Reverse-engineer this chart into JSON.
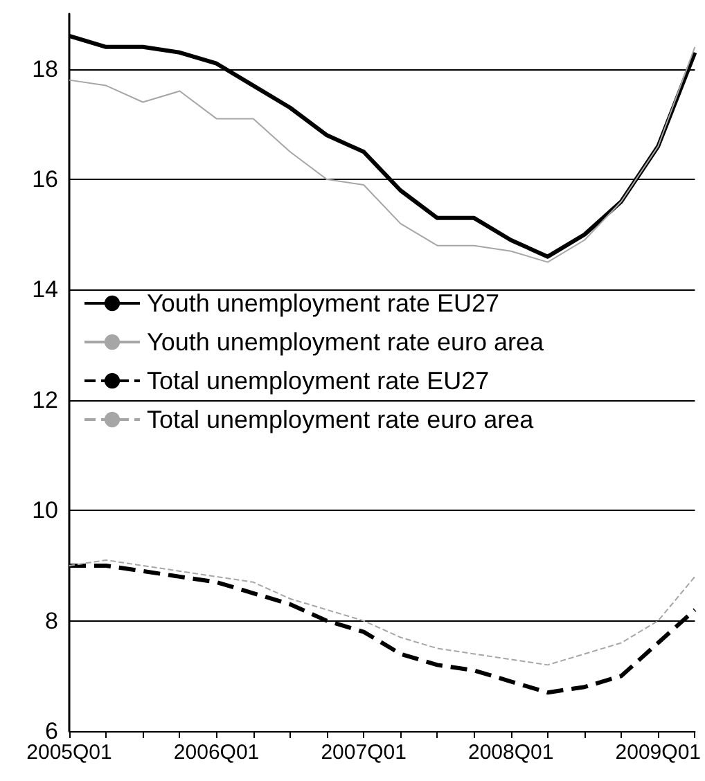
{
  "chart_data": {
    "type": "line",
    "categories": [
      "2005Q01",
      null,
      null,
      null,
      "2006Q01",
      null,
      null,
      null,
      "2007Q01",
      null,
      null,
      null,
      "2008Q01",
      null,
      null,
      null,
      "2009Q01",
      null
    ],
    "series": [
      {
        "name": "Youth unemployment rate EU27",
        "color": "#000000",
        "line_style": "solid",
        "values": [
          18.6,
          18.4,
          18.4,
          18.3,
          18.1,
          17.7,
          17.3,
          16.8,
          16.5,
          15.8,
          15.3,
          15.3,
          14.9,
          14.6,
          15.0,
          15.6,
          16.6,
          18.3
        ]
      },
      {
        "name": "Youth unemployment rate euro area",
        "color": "#a6a6a6",
        "line_style": "solid",
        "values": [
          17.8,
          17.7,
          17.4,
          17.6,
          17.1,
          17.1,
          16.5,
          16.0,
          15.9,
          15.2,
          14.8,
          14.8,
          14.7,
          14.5,
          14.9,
          15.6,
          16.6,
          18.4
        ]
      },
      {
        "name": "Total unemployment rate EU27",
        "color": "#000000",
        "line_style": "dashed",
        "values": [
          9.0,
          9.0,
          8.9,
          8.8,
          8.7,
          8.5,
          8.3,
          8.0,
          7.8,
          7.4,
          7.2,
          7.1,
          6.9,
          6.7,
          6.8,
          7.0,
          7.6,
          8.2
        ]
      },
      {
        "name": "Total unemployment rate euro area",
        "color": "#a6a6a6",
        "line_style": "dashed",
        "values": [
          9.0,
          9.1,
          9.0,
          8.9,
          8.8,
          8.7,
          8.4,
          8.2,
          8.0,
          7.7,
          7.5,
          7.4,
          7.3,
          7.2,
          7.4,
          7.6,
          8.0,
          8.8
        ]
      }
    ],
    "ylim": [
      6,
      19
    ],
    "yticks": [
      6,
      8,
      10,
      12,
      14,
      16,
      18
    ],
    "grid": "y",
    "legend": "center left",
    "marker": "none"
  }
}
